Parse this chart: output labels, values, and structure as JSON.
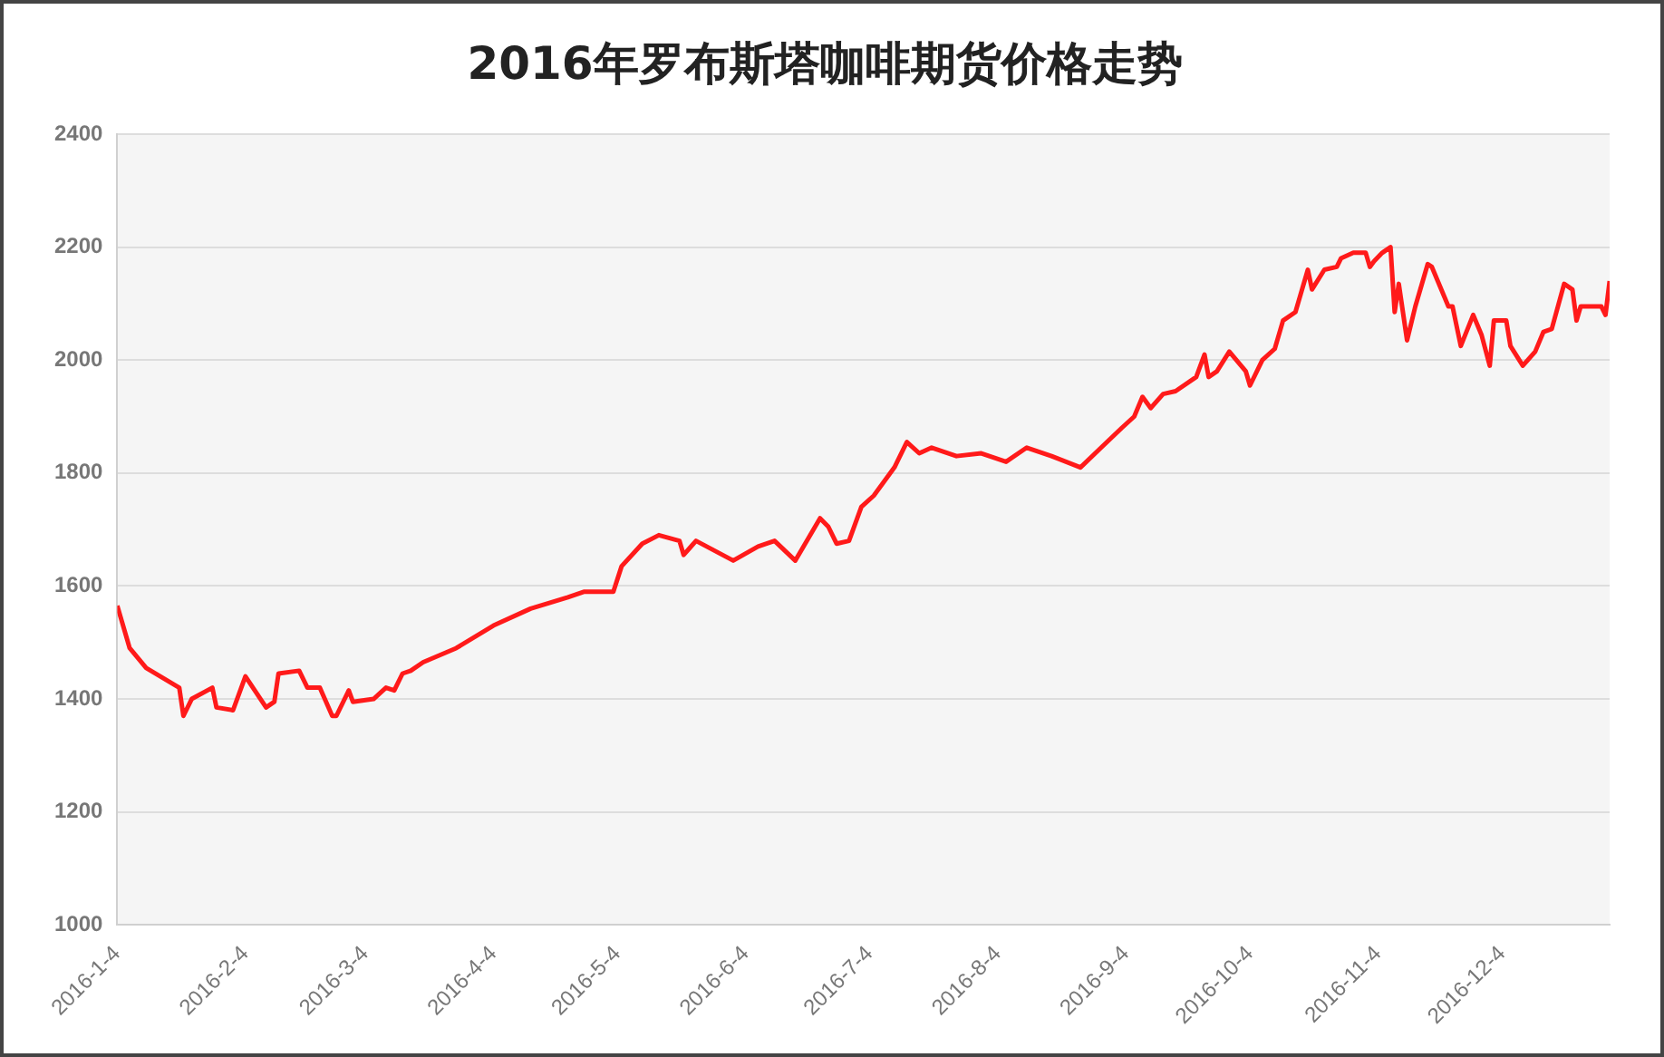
{
  "chart_data": {
    "type": "line",
    "title": "2016年罗布斯塔咖啡期货价格走势",
    "x": [
      "2016-01-04",
      "2016-01-07",
      "2016-01-11",
      "2016-01-19",
      "2016-01-20",
      "2016-01-22",
      "2016-01-27",
      "2016-01-28",
      "2016-02-01",
      "2016-02-04",
      "2016-02-09",
      "2016-02-11",
      "2016-02-12",
      "2016-02-17",
      "2016-02-19",
      "2016-02-22",
      "2016-02-25",
      "2016-02-26",
      "2016-02-29",
      "2016-03-01",
      "2016-03-06",
      "2016-03-09",
      "2016-03-11",
      "2016-03-13",
      "2016-03-15",
      "2016-03-18",
      "2016-03-26",
      "2016-04-04",
      "2016-04-13",
      "2016-04-22",
      "2016-04-26",
      "2016-05-03",
      "2016-05-05",
      "2016-05-10",
      "2016-05-14",
      "2016-05-19",
      "2016-05-20",
      "2016-05-23",
      "2016-06-01",
      "2016-06-07",
      "2016-06-11",
      "2016-06-16",
      "2016-06-22",
      "2016-06-24",
      "2016-06-26",
      "2016-06-29",
      "2016-07-02",
      "2016-07-05",
      "2016-07-10",
      "2016-07-13",
      "2016-07-16",
      "2016-07-19",
      "2016-07-25",
      "2016-07-31",
      "2016-08-06",
      "2016-08-11",
      "2016-08-17",
      "2016-08-24",
      "2016-08-29",
      "2016-09-03",
      "2016-09-06",
      "2016-09-08",
      "2016-09-10",
      "2016-09-13",
      "2016-09-16",
      "2016-09-21",
      "2016-09-23",
      "2016-09-24",
      "2016-09-26",
      "2016-09-29",
      "2016-10-03",
      "2016-10-04",
      "2016-10-07",
      "2016-10-10",
      "2016-10-12",
      "2016-10-15",
      "2016-10-18",
      "2016-10-19",
      "2016-10-22",
      "2016-10-25",
      "2016-10-26",
      "2016-10-29",
      "2016-11-01",
      "2016-11-02",
      "2016-11-03",
      "2016-11-05",
      "2016-11-07",
      "2016-11-08",
      "2016-11-09",
      "2016-11-11",
      "2016-11-13",
      "2016-11-16",
      "2016-11-17",
      "2016-11-21",
      "2016-11-22",
      "2016-11-24",
      "2016-11-27",
      "2016-11-29",
      "2016-12-01",
      "2016-12-02",
      "2016-12-05",
      "2016-12-06",
      "2016-12-09",
      "2016-12-12",
      "2016-12-14",
      "2016-12-16",
      "2016-12-19",
      "2016-12-21",
      "2016-12-22",
      "2016-12-23",
      "2016-12-28",
      "2016-12-29",
      "2016-12-30"
    ],
    "series": [
      {
        "color": "#ff1a1a",
        "values": [
          1565,
          1490,
          1455,
          1420,
          1370,
          1400,
          1420,
          1385,
          1380,
          1440,
          1385,
          1395,
          1445,
          1450,
          1420,
          1420,
          1370,
          1370,
          1415,
          1395,
          1400,
          1420,
          1415,
          1445,
          1450,
          1465,
          1490,
          1530,
          1560,
          1580,
          1590,
          1590,
          1635,
          1675,
          1690,
          1680,
          1655,
          1680,
          1645,
          1670,
          1680,
          1645,
          1720,
          1705,
          1675,
          1680,
          1740,
          1760,
          1810,
          1855,
          1835,
          1845,
          1830,
          1835,
          1820,
          1845,
          1830,
          1810,
          1845,
          1880,
          1900,
          1935,
          1915,
          1940,
          1945,
          1970,
          2010,
          1970,
          1980,
          2015,
          1980,
          1955,
          2000,
          2020,
          2070,
          2085,
          2160,
          2125,
          2160,
          2165,
          2180,
          2190,
          2190,
          2165,
          2175,
          2190,
          2200,
          2085,
          2135,
          2035,
          2095,
          2170,
          2165,
          2095,
          2095,
          2025,
          2080,
          2045,
          1990,
          2070,
          2070,
          2025,
          1990,
          2015,
          2050,
          2055,
          2135,
          2125,
          2070,
          2095,
          2095,
          2080,
          2140
        ]
      }
    ],
    "xlim": [
      "2016-01-04",
      "2016-12-30"
    ],
    "xticks": [
      {
        "value": "2016-01-04",
        "label": "2016-1-4"
      },
      {
        "value": "2016-02-04",
        "label": "2016-2-4"
      },
      {
        "value": "2016-03-04",
        "label": "2016-3-4"
      },
      {
        "value": "2016-04-04",
        "label": "2016-4-4"
      },
      {
        "value": "2016-05-04",
        "label": "2016-5-4"
      },
      {
        "value": "2016-06-04",
        "label": "2016-6-4"
      },
      {
        "value": "2016-07-04",
        "label": "2016-7-4"
      },
      {
        "value": "2016-08-04",
        "label": "2016-8-4"
      },
      {
        "value": "2016-09-04",
        "label": "2016-9-4"
      },
      {
        "value": "2016-10-04",
        "label": "2016-10-4"
      },
      {
        "value": "2016-11-04",
        "label": "2016-11-4"
      },
      {
        "value": "2016-12-04",
        "label": "2016-12-4"
      }
    ],
    "ylim": [
      1000,
      2400
    ],
    "yticks": [
      1000,
      1200,
      1400,
      1600,
      1800,
      2000,
      2200,
      2400
    ],
    "grid": "y",
    "legend": false,
    "marker": "none",
    "line_style": "solid"
  }
}
